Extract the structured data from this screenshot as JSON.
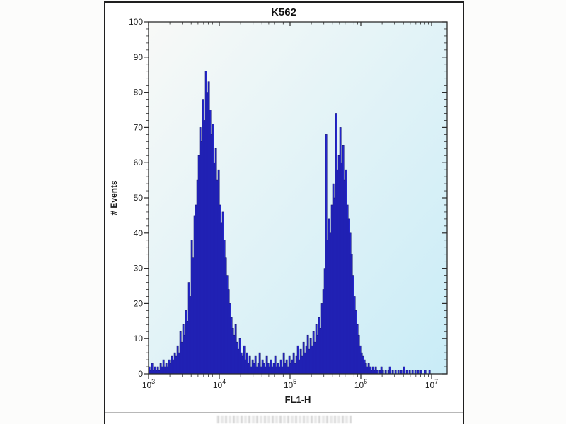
{
  "panel": {
    "background": "#ffffff",
    "border_color": "#1f1f1f"
  },
  "chart_data": {
    "type": "bar",
    "subtype": "flow-cytometry-histogram",
    "title": "K562",
    "xlabel": "FL1-H",
    "ylabel": "# Events",
    "x_scale": "log10",
    "xlim_log": [
      3,
      7.22
    ],
    "ylim": [
      0,
      100
    ],
    "grid": false,
    "legend": "none",
    "x_ticks": [
      {
        "base": "10",
        "exponent": "3",
        "log": 3
      },
      {
        "base": "10",
        "exponent": "4",
        "log": 4
      },
      {
        "base": "10",
        "exponent": "5",
        "log": 5
      },
      {
        "base": "10",
        "exponent": "6",
        "log": 6
      },
      {
        "base": "10",
        "exponent": "7",
        "log": 7
      }
    ],
    "y_ticks": [
      0,
      10,
      20,
      30,
      40,
      50,
      60,
      70,
      80,
      90,
      100
    ],
    "y_minor_step": 2,
    "peaks": [
      {
        "approx_mode_fl1h": 6300,
        "approx_mode_log10": 3.8,
        "max_events": 86
      },
      {
        "approx_mode_fl1h": 440000,
        "approx_mode_log10": 5.64,
        "max_events": 74
      }
    ],
    "bins": {
      "log10_start": 3.0,
      "log10_step": 0.02,
      "values": [
        2,
        1,
        3,
        1,
        2,
        1,
        2,
        1,
        3,
        2,
        4,
        2,
        3,
        2,
        4,
        3,
        5,
        4,
        6,
        5,
        8,
        6,
        12,
        9,
        14,
        11,
        18,
        15,
        26,
        22,
        38,
        33,
        45,
        48,
        55,
        62,
        70,
        66,
        78,
        72,
        86,
        80,
        83,
        75,
        68,
        71,
        60,
        64,
        55,
        58,
        48,
        43,
        46,
        38,
        33,
        28,
        24,
        20,
        16,
        13,
        11,
        14,
        9,
        7,
        10,
        6,
        5,
        8,
        4,
        6,
        3,
        5,
        2,
        4,
        3,
        5,
        2,
        3,
        6,
        2,
        4,
        3,
        2,
        5,
        3,
        2,
        4,
        2,
        3,
        5,
        2,
        3,
        2,
        4,
        2,
        6,
        3,
        4,
        2,
        5,
        3,
        4,
        6,
        3,
        5,
        8,
        4,
        7,
        5,
        9,
        6,
        8,
        11,
        7,
        10,
        8,
        12,
        9,
        14,
        11,
        16,
        13,
        20,
        24,
        30,
        68,
        38,
        44,
        40,
        48,
        54,
        50,
        74,
        58,
        62,
        70,
        60,
        65,
        55,
        58,
        48,
        44,
        40,
        34,
        28,
        22,
        18,
        14,
        11,
        8,
        6,
        5,
        4,
        3,
        2,
        3,
        2,
        1,
        2,
        1,
        2,
        1,
        0,
        1,
        2,
        1,
        0,
        1,
        0,
        1,
        2,
        0,
        1,
        0,
        1,
        0,
        1,
        0,
        1,
        0,
        2,
        0,
        1,
        0,
        1,
        0,
        1,
        0,
        1,
        0,
        1,
        0,
        1,
        0,
        0,
        1,
        0,
        0,
        1,
        0
      ]
    }
  },
  "colors": {
    "hist_fill": "#2526cf",
    "hist_stroke": "#15156e",
    "axis": "#2b2b2b",
    "tick_label": "#1c1c1c",
    "plot_bg_start": "#f8f9f7",
    "plot_bg_end": "#c9ecf7"
  }
}
